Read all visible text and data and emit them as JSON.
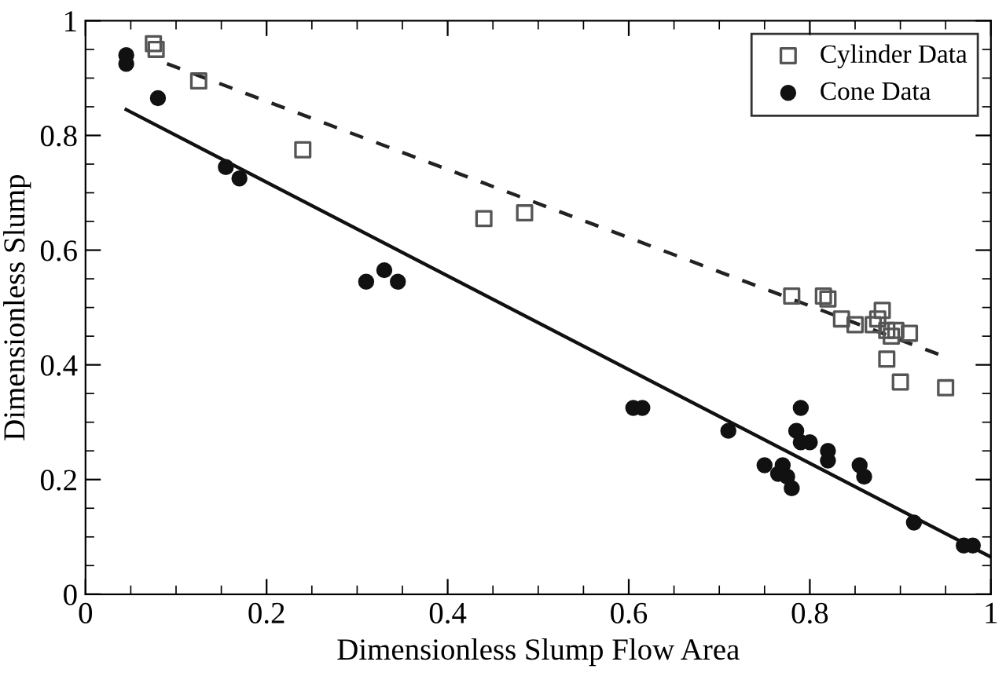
{
  "chart_data": {
    "type": "scatter",
    "xlabel": "Dimensionless Slump Flow Area",
    "ylabel": "Dimensionless Slump",
    "xlim": [
      0,
      1
    ],
    "ylim": [
      0,
      1
    ],
    "xticks": [
      0,
      0.2,
      0.4,
      0.6,
      0.8,
      1
    ],
    "yticks": [
      0,
      0.2,
      0.4,
      0.6,
      0.8,
      1
    ],
    "grid": false,
    "legend": "top right",
    "series": [
      {
        "name": "Cylinder Data",
        "color": "#555555",
        "marker": "square",
        "x": [
          0.075,
          0.078,
          0.125,
          0.24,
          0.44,
          0.485,
          0.78,
          0.815,
          0.82,
          0.835,
          0.85,
          0.87,
          0.875,
          0.88,
          0.885,
          0.89,
          0.895,
          0.91,
          0.885,
          0.9,
          0.95
        ],
        "values": [
          0.96,
          0.95,
          0.895,
          0.775,
          0.655,
          0.665,
          0.52,
          0.52,
          0.515,
          0.48,
          0.47,
          0.47,
          0.48,
          0.495,
          0.46,
          0.45,
          0.46,
          0.455,
          0.41,
          0.37,
          0.36
        ]
      },
      {
        "name": "Cone Data",
        "color": "#111111",
        "marker": "circle",
        "x": [
          0.045,
          0.045,
          0.08,
          0.155,
          0.17,
          0.31,
          0.33,
          0.345,
          0.605,
          0.615,
          0.71,
          0.75,
          0.765,
          0.77,
          0.775,
          0.78,
          0.785,
          0.79,
          0.8,
          0.79,
          0.82,
          0.82,
          0.855,
          0.86,
          0.915,
          0.97,
          0.98
        ],
        "values": [
          0.94,
          0.925,
          0.865,
          0.745,
          0.725,
          0.545,
          0.565,
          0.545,
          0.325,
          0.325,
          0.285,
          0.225,
          0.21,
          0.225,
          0.205,
          0.185,
          0.285,
          0.265,
          0.265,
          0.325,
          0.25,
          0.233,
          0.225,
          0.205,
          0.125,
          0.085,
          0.085
        ]
      },
      {
        "type": "line",
        "color": "#222222",
        "line_style": "dashed",
        "marker": "none",
        "x": [
          0.09,
          0.946
        ],
        "values": [
          0.925,
          0.416
        ]
      },
      {
        "type": "line",
        "color": "#111111",
        "line_style": "solid",
        "marker": "none",
        "x": [
          0.045,
          1.0
        ],
        "values": [
          0.845,
          0.065
        ]
      }
    ]
  }
}
